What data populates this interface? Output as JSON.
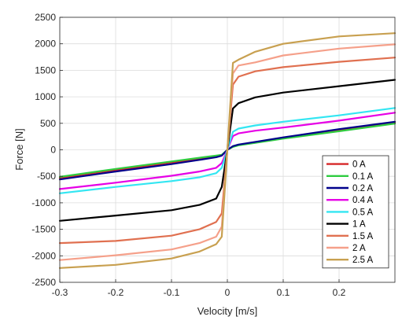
{
  "chart_data": {
    "type": "line",
    "xlabel": "Velocity [m/s]",
    "ylabel": "Force [N]",
    "xlim": [
      -0.3,
      0.3
    ],
    "ylim": [
      -2500,
      2500
    ],
    "x_ticks": [
      "-0.3",
      "-0.2",
      "-0.1",
      "0",
      "0.1",
      "0.2"
    ],
    "y_ticks": [
      "2500",
      "2000",
      "1500",
      "1000",
      "500",
      "0",
      "-500",
      "-1000",
      "-1500",
      "-2000",
      "-2500"
    ],
    "grid": true,
    "legend_position": "bottom-right",
    "series": [
      {
        "name": "0 A",
        "color": "#d62728",
        "x": [
          -0.3,
          -0.2,
          -0.1,
          -0.05,
          -0.02,
          -0.01,
          0,
          0.01,
          0.02,
          0.05,
          0.1,
          0.2,
          0.3
        ],
        "y": [
          -530,
          -380,
          -240,
          -170,
          -120,
          -100,
          0,
          60,
          90,
          140,
          220,
          370,
          510
        ]
      },
      {
        "name": "0.1 A",
        "color": "#2ecc40",
        "x": [
          -0.3,
          -0.2,
          -0.1,
          -0.05,
          -0.02,
          -0.01,
          0,
          0.01,
          0.02,
          0.05,
          0.1,
          0.2,
          0.3
        ],
        "y": [
          -510,
          -360,
          -220,
          -150,
          -110,
          -95,
          0,
          55,
          85,
          130,
          210,
          350,
          495
        ]
      },
      {
        "name": "0.2 A",
        "color": "#00008b",
        "x": [
          -0.3,
          -0.2,
          -0.1,
          -0.05,
          -0.02,
          -0.01,
          0,
          0.01,
          0.02,
          0.05,
          0.1,
          0.2,
          0.3
        ],
        "y": [
          -560,
          -410,
          -270,
          -190,
          -140,
          -110,
          0,
          70,
          100,
          150,
          235,
          390,
          530
        ]
      },
      {
        "name": "0.4 A",
        "color": "#e600e6",
        "x": [
          -0.3,
          -0.2,
          -0.1,
          -0.05,
          -0.02,
          -0.01,
          0,
          0.01,
          0.02,
          0.05,
          0.1,
          0.2,
          0.3
        ],
        "y": [
          -740,
          -620,
          -490,
          -410,
          -340,
          -250,
          0,
          260,
          310,
          360,
          420,
          550,
          700
        ]
      },
      {
        "name": "0.5 A",
        "color": "#33e6f2",
        "x": [
          -0.3,
          -0.2,
          -0.1,
          -0.05,
          -0.02,
          -0.01,
          0,
          0.01,
          0.02,
          0.05,
          0.1,
          0.2,
          0.3
        ],
        "y": [
          -820,
          -700,
          -590,
          -520,
          -440,
          -340,
          0,
          340,
          400,
          460,
          530,
          650,
          790
        ]
      },
      {
        "name": "1 A",
        "color": "#000000",
        "x": [
          -0.3,
          -0.2,
          -0.1,
          -0.05,
          -0.02,
          -0.01,
          0,
          0.01,
          0.02,
          0.05,
          0.1,
          0.2,
          0.3
        ],
        "y": [
          -1340,
          -1240,
          -1140,
          -1040,
          -920,
          -700,
          0,
          780,
          880,
          990,
          1080,
          1200,
          1320
        ]
      },
      {
        "name": "1.5 A",
        "color": "#e07050",
        "x": [
          -0.3,
          -0.2,
          -0.1,
          -0.05,
          -0.02,
          -0.01,
          0,
          0.01,
          0.02,
          0.05,
          0.1,
          0.2,
          0.3
        ],
        "y": [
          -1760,
          -1720,
          -1620,
          -1500,
          -1360,
          -1200,
          0,
          1230,
          1380,
          1480,
          1560,
          1660,
          1740
        ]
      },
      {
        "name": "2 A",
        "color": "#f5a08a",
        "x": [
          -0.3,
          -0.2,
          -0.1,
          -0.05,
          -0.02,
          -0.01,
          0,
          0.01,
          0.02,
          0.05,
          0.1,
          0.2,
          0.3
        ],
        "y": [
          -2080,
          -1990,
          -1880,
          -1760,
          -1640,
          -1450,
          0,
          1440,
          1590,
          1650,
          1780,
          1910,
          1990
        ]
      },
      {
        "name": "2.5 A",
        "color": "#c8a050",
        "x": [
          -0.3,
          -0.2,
          -0.1,
          -0.05,
          -0.02,
          -0.01,
          0,
          0.01,
          0.02,
          0.05,
          0.1,
          0.2,
          0.3
        ],
        "y": [
          -2230,
          -2170,
          -2050,
          -1920,
          -1780,
          -1640,
          0,
          1640,
          1700,
          1850,
          2000,
          2140,
          2200
        ]
      }
    ]
  }
}
